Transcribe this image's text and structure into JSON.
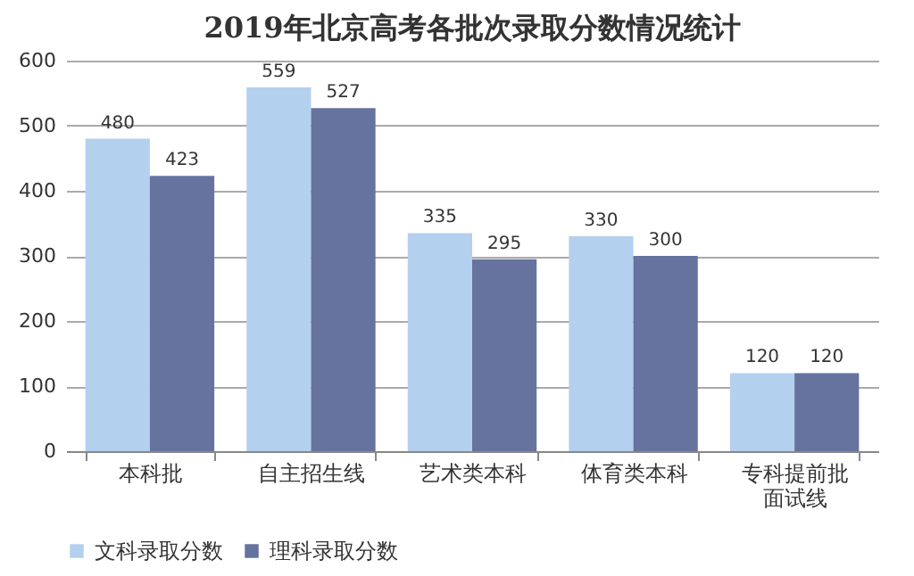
{
  "chart_data": {
    "type": "bar",
    "title": "2019年北京高考各批次录取分数情况统计",
    "categories": [
      "本科批",
      "自主招生线",
      "艺术类本科",
      "体育类本科",
      "专科提前批面试线"
    ],
    "series": [
      {
        "name": "文科录取分数",
        "color": "#b4d0ef",
        "values": [
          480,
          559,
          335,
          330,
          120
        ]
      },
      {
        "name": "理科录取分数",
        "color": "#66739e",
        "values": [
          423,
          527,
          295,
          300,
          120
        ]
      }
    ],
    "ylim": [
      0,
      600
    ],
    "yticks": [
      0,
      100,
      200,
      300,
      400,
      500,
      600
    ],
    "grid": "y",
    "legend": "bottom",
    "data_labels": true
  }
}
